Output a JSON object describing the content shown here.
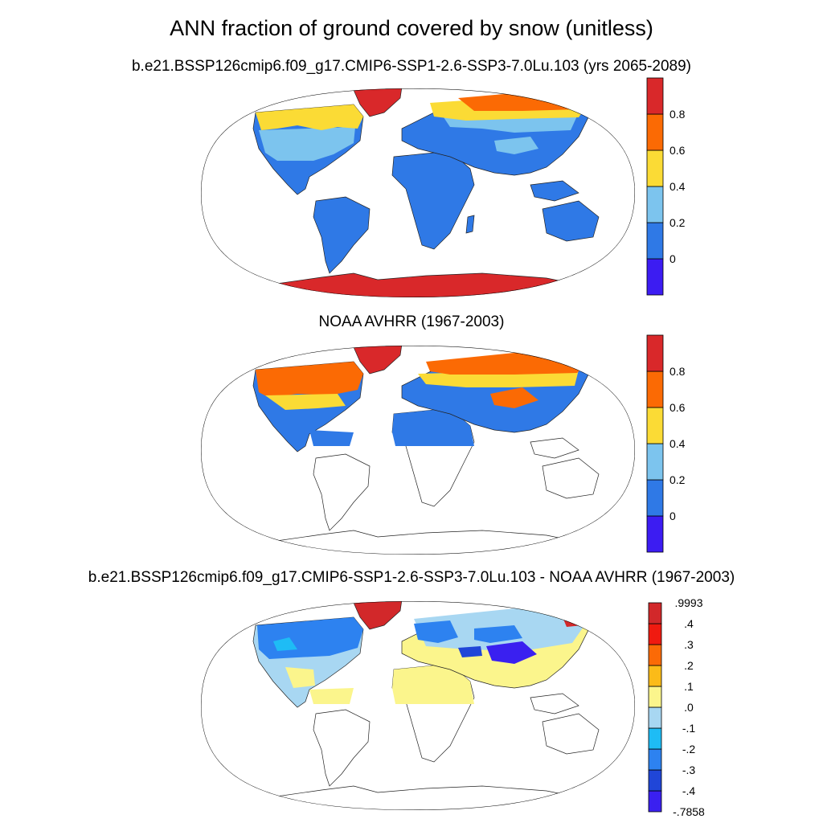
{
  "figure": {
    "title": "ANN fraction of ground covered by snow (unitless)"
  },
  "panels": [
    {
      "title": "b.e21.BSSP126cmip6.f09_g17.CMIP6-SSP1-2.6-SSP3-7.0Lu.103 (yrs 2065-2089)",
      "colorbar": {
        "colors": [
          "#3c1cf2",
          "#2f79e6",
          "#7cc4ee",
          "#fbdb35",
          "#fb6a04",
          "#d9282a"
        ],
        "labels": [
          "0",
          "0.2",
          "0.4",
          "0.6",
          "0.8"
        ]
      }
    },
    {
      "title": "NOAA AVHRR (1967-2003)",
      "colorbar": {
        "colors": [
          "#3c1cf2",
          "#2f79e6",
          "#7cc4ee",
          "#fbdb35",
          "#fb6a04",
          "#d9282a"
        ],
        "labels": [
          "0",
          "0.2",
          "0.4",
          "0.6",
          "0.8"
        ]
      }
    },
    {
      "title": "b.e21.BSSP126cmip6.f09_g17.CMIP6-SSP1-2.6-SSP3-7.0Lu.103 - NOAA AVHRR (1967-2003)",
      "colorbar": {
        "colors": [
          "#3a20f0",
          "#2046d8",
          "#2d82f0",
          "#1ebcf5",
          "#a8d7f2",
          "#fbf58c",
          "#fbbb18",
          "#fb6a06",
          "#f01a10",
          "#d2282a"
        ],
        "labels": [
          ".9993",
          ".4",
          ".3",
          ".2",
          ".1",
          ".0",
          "-.1",
          "-.2",
          "-.3",
          "-.4",
          "-.7858"
        ]
      }
    }
  ]
}
